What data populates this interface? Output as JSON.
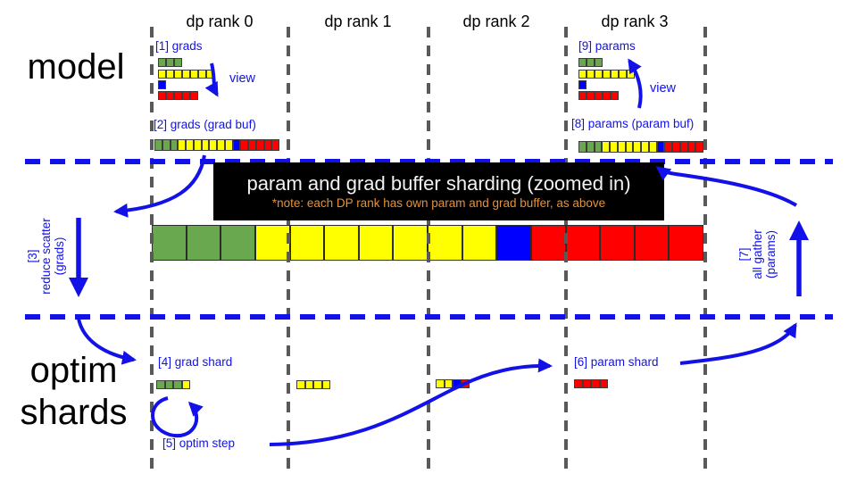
{
  "colors": {
    "g": "#6aa84f",
    "y": "#ffff00",
    "b": "#0000ff",
    "r": "#ff0000"
  },
  "accents": {
    "arrow_blue": "#1212e8",
    "line_gray": "#595959",
    "note_orange": "#e69138",
    "box_black": "#000000"
  },
  "headers": {
    "rank0": "dp rank 0",
    "rank1": "dp rank 1",
    "rank2": "dp rank 2",
    "rank3": "dp rank 3"
  },
  "sections": {
    "model": "model",
    "optim_line1": "optim",
    "optim_line2": "shards"
  },
  "model_row": {
    "grads_label": "[1] grads",
    "view_down_label": "view",
    "grad_buf_label": "[2] grads (grad buf)",
    "params_label": "[9] params",
    "view_up_label": "view",
    "param_buf_label": "[8] params (param buf)"
  },
  "zoom_box": {
    "title": "param and grad buffer sharding (zoomed in)",
    "note": "*note: each DP rank has own param and grad buffer, as above"
  },
  "side_ops": {
    "reduce_scatter": [
      "[3]",
      "reduce scatter",
      "(grads)"
    ],
    "all_gather": [
      "[7]",
      "all gather",
      "(params)"
    ]
  },
  "optim_row": {
    "grad_shard_label": "[4] grad shard",
    "optim_step_label": "[5] optim step",
    "param_shard_label": "[6] param shard"
  },
  "bars": {
    "grads_tensors": [
      "ggg",
      "yyyyyyy",
      "b",
      "rrrrr"
    ],
    "grad_buffer": "gggyyyyyyybrrrrr",
    "params_tensors": [
      "ggg",
      "yyyyyyy",
      "b",
      "rrrrr"
    ],
    "param_buffer": "gggyyyyyyybrrrrr",
    "zoom_buffer": "gggyyyyyyybrrrrr",
    "shard_rank0": "gggy",
    "shard_rank1": "yyyy",
    "shard_rank2": "yybr",
    "shard_rank3": "rrrr"
  }
}
